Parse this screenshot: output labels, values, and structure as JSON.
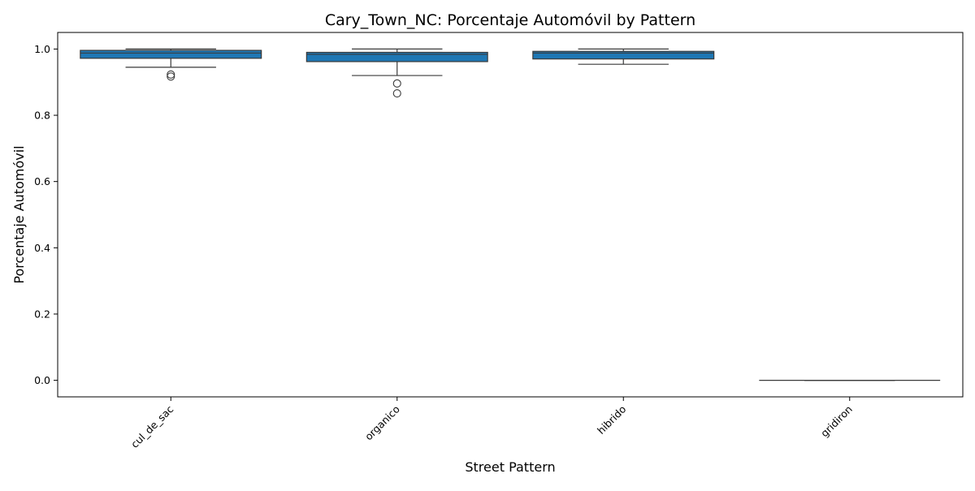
{
  "chart_data": {
    "type": "box",
    "title": "Cary_Town_NC: Porcentaje Automóvil by Pattern",
    "xlabel": "Street Pattern",
    "ylabel": "Porcentaje Automóvil",
    "ylim": [
      -0.05,
      1.05
    ],
    "yticks": [
      "0.0",
      "0.2",
      "0.4",
      "0.6",
      "0.8",
      "1.0"
    ],
    "grid": false,
    "box_color": "#1f77b4",
    "line_color": "#3a3a3a",
    "categories": [
      "cul_de_sac",
      "organico",
      "hibrido",
      "gridiron"
    ],
    "boxes": [
      {
        "category": "cul_de_sac",
        "whisker_low": 0.945,
        "q1": 0.972,
        "median": 0.988,
        "q3": 0.996,
        "whisker_high": 1.0,
        "outliers": [
          0.917,
          0.923
        ]
      },
      {
        "category": "organico",
        "whisker_low": 0.92,
        "q1": 0.962,
        "median": 0.984,
        "q3": 0.99,
        "whisker_high": 1.0,
        "outliers": [
          0.896,
          0.866
        ]
      },
      {
        "category": "hibrido",
        "whisker_low": 0.954,
        "q1": 0.97,
        "median": 0.988,
        "q3": 0.993,
        "whisker_high": 1.0,
        "outliers": []
      },
      {
        "category": "gridiron",
        "whisker_low": 0.0,
        "q1": 0.0,
        "median": 0.0,
        "q3": 0.0,
        "whisker_high": 0.0,
        "outliers": []
      }
    ]
  }
}
